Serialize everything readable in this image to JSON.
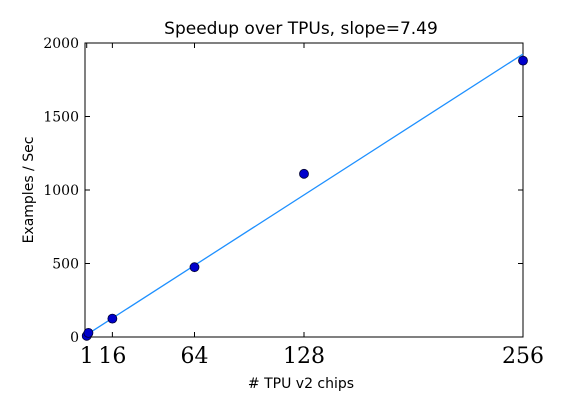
{
  "chart_data": {
    "type": "scatter",
    "title": "Speedup over TPUs, slope=7.49",
    "xlabel": "# TPU v2 chips",
    "ylabel": "Examples / Sec",
    "xlim": [
      0,
      256
    ],
    "ylim": [
      0,
      2000
    ],
    "xticks": [
      1,
      16,
      64,
      128,
      256
    ],
    "yticks": [
      0,
      500,
      1000,
      1500,
      2000
    ],
    "grid": false,
    "legend": "none",
    "series": [
      {
        "x": [
          1,
          2,
          16,
          64,
          128,
          256
        ],
        "y": [
          8,
          28,
          125,
          475,
          1110,
          1880
        ],
        "color": "#0000cc"
      }
    ],
    "fit_line": {
      "slope": 7.49,
      "x": [
        0,
        256
      ],
      "y": [
        8,
        1925
      ],
      "color": "#1e90ff"
    }
  }
}
